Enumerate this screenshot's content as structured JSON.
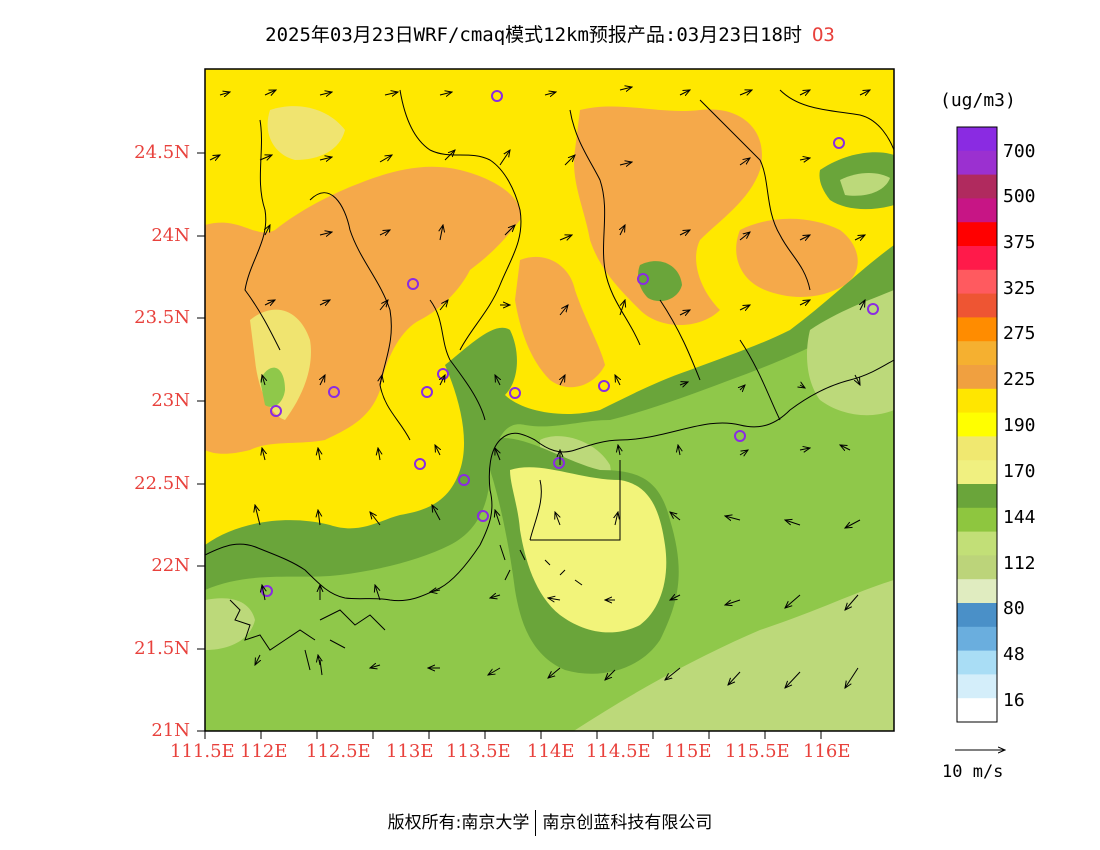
{
  "title": {
    "text": "2025年03月23日WRF/cmaq模式12km预报产品:03月23日18时",
    "species": "O3"
  },
  "latitude_labels": [
    "24.5N",
    "24N",
    "23.5N",
    "23N",
    "22.5N",
    "22N",
    "21.5N",
    "21N"
  ],
  "longitude_labels": [
    "111.5E",
    "112E",
    "112.5E",
    "113E",
    "113.5E",
    "114E",
    "114.5E",
    "115E",
    "115.5E",
    "116E"
  ],
  "colorbar": {
    "unit": "(ug/m3)",
    "labels": [
      "700",
      "500",
      "375",
      "325",
      "275",
      "225",
      "190",
      "170",
      "144",
      "112",
      "80",
      "48",
      "16"
    ],
    "colors_top_to_bottom": [
      "#8a2be2",
      "#9b30d0",
      "#b02a5e",
      "#c71585",
      "#ff0000",
      "#ff1a4a",
      "#ff5a5f",
      "#ee5533",
      "#ff8c00",
      "#f5b030",
      "#f0a040",
      "#ffe600",
      "#ffff00",
      "#f0e870",
      "#f0f080",
      "#6aa53a",
      "#8ec63f",
      "#c2df77",
      "#bcd47a",
      "#e0ecc0",
      "#4a90c8",
      "#6aaede",
      "#a9ddf5",
      "#d4eefa",
      "#ffffff"
    ]
  },
  "wind_reference": {
    "label": "10 m/s"
  },
  "footer": {
    "left": "版权所有:南京大学",
    "right": "南京创蓝科技有限公司"
  },
  "map_colors": {
    "orange": "#f5a94a",
    "yellow": "#ffe800",
    "light_yellow": "#f0e470",
    "pale_yellow": "#f2f47a",
    "dark_green": "#6aa53a",
    "mid_green": "#8fc84a",
    "light_green": "#bcd97a",
    "pale_green": "#d4e6a8"
  }
}
